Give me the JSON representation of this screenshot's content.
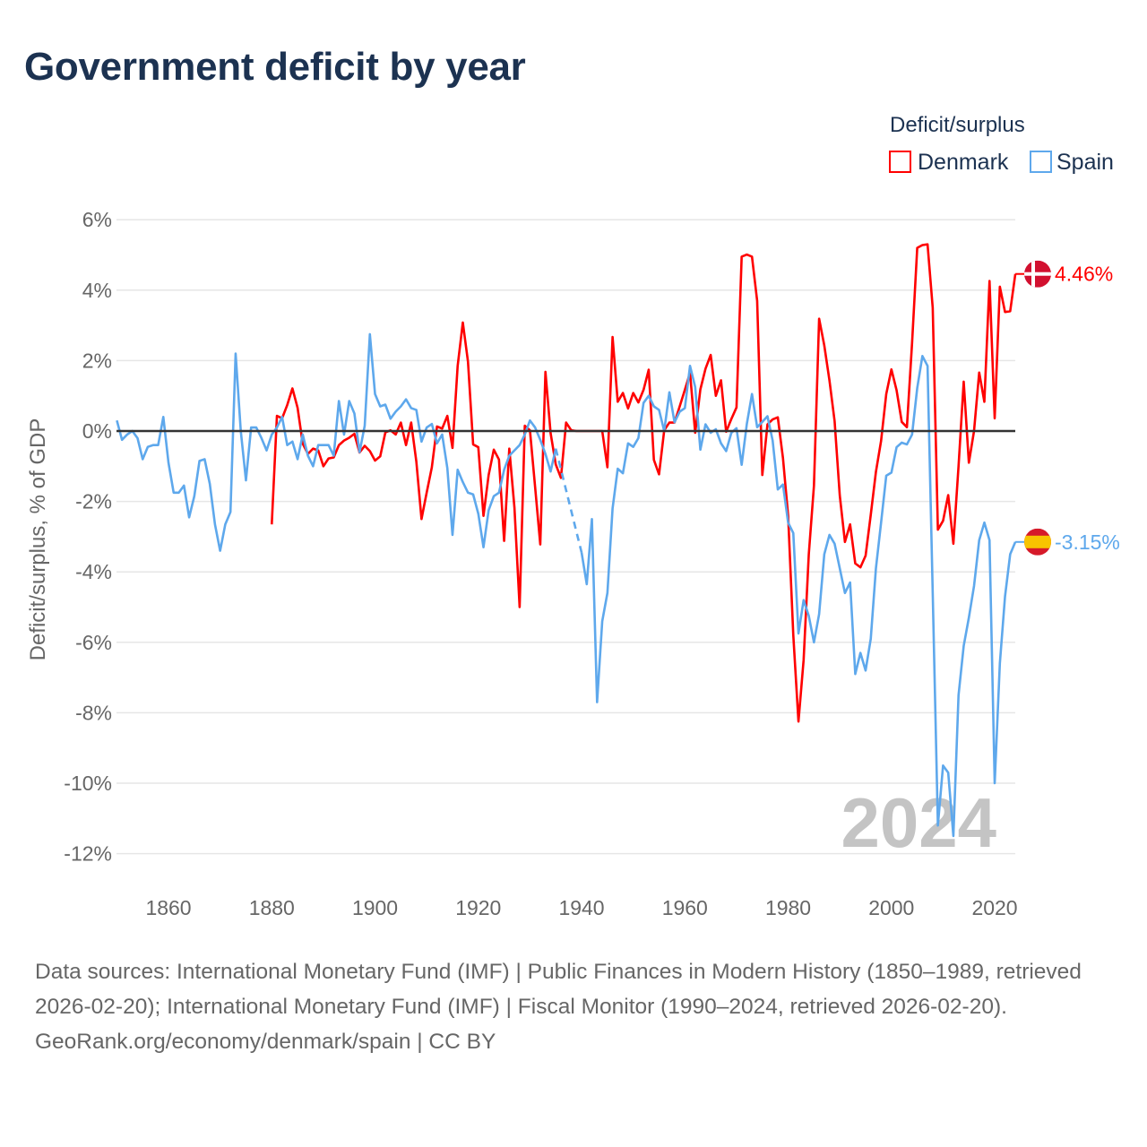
{
  "title": "Government deficit by year",
  "chart_data": {
    "type": "line",
    "title": "Government deficit by year",
    "ylabel": "Deficit/surplus, % of GDP",
    "xlabel": "",
    "ylim": [
      -13.2,
      6.4
    ],
    "xlim": [
      1850,
      2024
    ],
    "yticks": [
      6,
      4,
      2,
      0,
      -2,
      -4,
      -6,
      -8,
      -10,
      -12
    ],
    "ytick_labels": [
      "6%",
      "4%",
      "2%",
      "0%",
      "-2%",
      "-4%",
      "-6%",
      "-8%",
      "-10%",
      "-12%"
    ],
    "xticks": [
      1860,
      1880,
      1900,
      1920,
      1940,
      1960,
      1980,
      2000,
      2020
    ],
    "xtick_labels": [
      "1860",
      "1880",
      "1900",
      "1920",
      "1940",
      "1960",
      "1980",
      "2000",
      "2020"
    ],
    "grid": true,
    "legend": {
      "title": "Deficit/surplus",
      "placement": "top-right"
    },
    "year_watermark": "2024",
    "series": [
      {
        "name": "Denmark",
        "color": "#ff0000",
        "start_year": 1880,
        "end_label": "4.46%",
        "values": [
          -2.65,
          0.43,
          0.36,
          0.74,
          1.21,
          0.66,
          -0.36,
          -0.65,
          -0.5,
          -0.55,
          -1.0,
          -0.78,
          -0.75,
          -0.4,
          -0.27,
          -0.19,
          -0.08,
          -0.61,
          -0.42,
          -0.57,
          -0.84,
          -0.72,
          -0.04,
          0.02,
          -0.1,
          0.24,
          -0.4,
          0.24,
          -0.87,
          -2.5,
          -1.75,
          -1.03,
          0.13,
          0.07,
          0.43,
          -0.48,
          1.85,
          3.08,
          1.97,
          -0.38,
          -0.46,
          -2.41,
          -1.25,
          -0.53,
          -0.81,
          -3.12,
          -0.5,
          -2.18,
          -5.0,
          0.15,
          0.02,
          -1.59,
          -3.22,
          1.68,
          -0.06,
          -0.95,
          -1.33,
          0.24,
          0.02,
          0,
          0,
          0,
          0,
          0,
          0,
          -1.03,
          2.67,
          0.83,
          1.08,
          0.64,
          1.08,
          0.81,
          1.17,
          1.74,
          -0.82,
          -1.23,
          0.02,
          0.24,
          0.24,
          0.7,
          1.17,
          1.65,
          -0.05,
          1.18,
          1.77,
          2.16,
          1.0,
          1.44,
          -0.02,
          0.34,
          0.67,
          4.95,
          5.01,
          4.95,
          3.7,
          -1.25,
          0.19,
          0.33,
          0.39,
          -0.77,
          -2.4,
          -5.8,
          -8.25,
          -6.5,
          -3.5,
          -1.55,
          3.19,
          2.43,
          1.44,
          0.28,
          -1.83,
          -3.15,
          -2.65,
          -3.76,
          -3.87,
          -3.54,
          -2.38,
          -1.16,
          -0.28,
          1.05,
          1.75,
          1.16,
          0.26,
          0.11,
          2.5,
          5.2,
          5.28,
          5.3,
          3.5,
          -2.8,
          -2.55,
          -1.82,
          -3.2,
          -1.0,
          1.4,
          -0.9,
          0,
          1.66,
          0.83,
          4.26,
          0.36,
          4.1,
          3.38,
          3.4,
          4.46
        ]
      },
      {
        "name": "Spain",
        "color": "#5ea8ec",
        "start_year": 1850,
        "end_label": "-3.15%",
        "values": [
          0.3,
          -0.25,
          -0.1,
          0,
          -0.2,
          -0.8,
          -0.45,
          -0.4,
          -0.4,
          0.4,
          -0.9,
          -1.75,
          -1.75,
          -1.55,
          -2.45,
          -1.85,
          -0.85,
          -0.8,
          -1.5,
          -2.65,
          -3.4,
          -2.65,
          -2.3,
          2.2,
          0,
          -1.4,
          0.1,
          0.1,
          -0.2,
          -0.55,
          -0.1,
          0.1,
          0.4,
          -0.4,
          -0.3,
          -0.8,
          -0.1,
          -0.7,
          -1.0,
          -0.4,
          -0.4,
          -0.4,
          -0.7,
          0.85,
          -0.1,
          0.85,
          0.5,
          -0.6,
          0.15,
          2.75,
          1.05,
          0.7,
          0.75,
          0.35,
          0.55,
          0.7,
          0.9,
          0.65,
          0.6,
          -0.3,
          0.1,
          0.2,
          -0.35,
          -0.1,
          -1.05,
          -2.95,
          -1.1,
          -1.45,
          -1.75,
          -1.8,
          -2.35,
          -3.3,
          -2.25,
          -1.85,
          -1.75,
          -1.1,
          -0.7,
          -0.55,
          -0.4,
          -0.1,
          0.3,
          0.1,
          -0.25,
          -0.65,
          -1.15,
          -0.5,
          null,
          null,
          null,
          null,
          -3.45,
          -4.35,
          -2.5,
          -7.7,
          -5.4,
          -4.6,
          -2.2,
          -1.07,
          -1.2,
          -0.35,
          -0.45,
          -0.2,
          0.8,
          1.0,
          0.7,
          0.6,
          0,
          1.1,
          0.25,
          0.55,
          0.65,
          1.85,
          1.25,
          -0.53,
          0.19,
          -0.05,
          0.05,
          -0.35,
          -0.57,
          -0.05,
          0.08,
          -0.96,
          0.2,
          1.05,
          0.11,
          0.26,
          0.42,
          -0.27,
          -1.66,
          -1.52,
          -2.6,
          -2.9,
          -5.75,
          -4.8,
          -5.25,
          -6.0,
          -5.2,
          -3.5,
          -2.95,
          -3.2,
          -3.9,
          -4.6,
          -4.3,
          -6.9,
          -6.3,
          -6.8,
          -5.9,
          -3.9,
          -2.6,
          -1.27,
          -1.18,
          -0.46,
          -0.33,
          -0.38,
          -0.1,
          1.22,
          2.13,
          1.85,
          -4.6,
          -11.2,
          -9.5,
          -9.7,
          -11.5,
          -7.5,
          -6.1,
          -5.3,
          -4.4,
          -3.1,
          -2.6,
          -3.1,
          -10.0,
          -6.6,
          -4.7,
          -3.5,
          -3.15
        ]
      }
    ]
  },
  "footer": {
    "sources": "Data sources: International Monetary Fund (IMF) | Public Finances in Modern History (1850–1989, retrieved 2026-02-20); International Monetary Fund (IMF) | Fiscal Monitor (1990–2024, retrieved 2026-02-20).",
    "credit": "GeoRank.org/economy/denmark/spain | CC BY"
  }
}
